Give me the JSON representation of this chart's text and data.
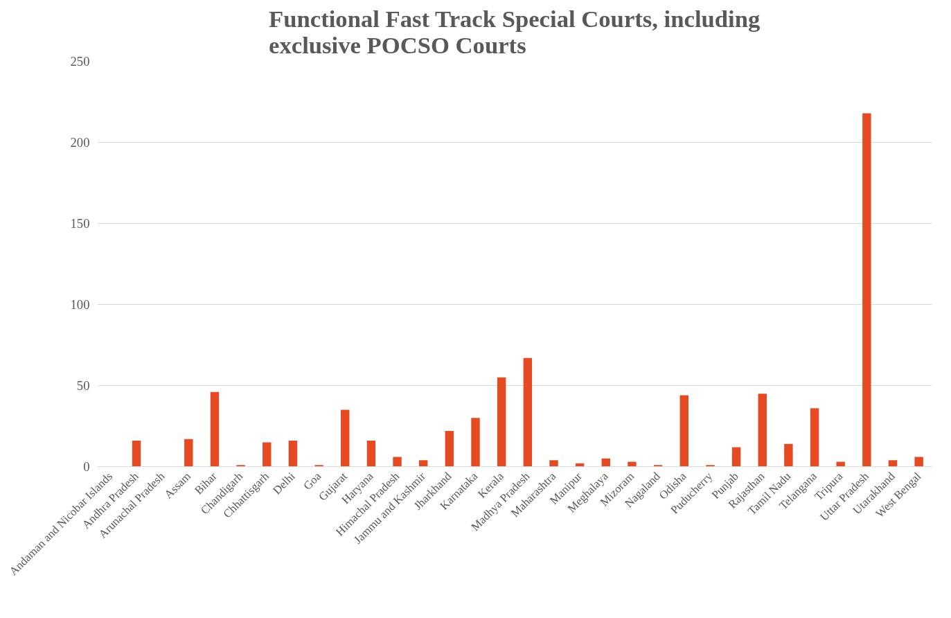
{
  "chart_data": {
    "type": "bar",
    "title": "Functional Fast Track Special Courts, including exclusive POCSO Courts",
    "categories": [
      "Andaman and Nicobar Islands",
      "Andhra Pradesh",
      "Arunachal Pradesh",
      "Assam",
      "Bihar",
      "Chandigarh",
      "Chhattisgarh",
      "Delhi",
      "Goa",
      "Gujarat",
      "Haryana",
      "Himachal Pradesh",
      "Jammu and Kashmir",
      "Jharkhand",
      "Karnataka",
      "Kerala",
      "Madhya Pradesh",
      "Maharashtra",
      "Manipur",
      "Meghalaya",
      "Mizoram",
      "Nagaland",
      "Odisha",
      "Puducherry",
      "Punjab",
      "Rajasthan",
      "Tamil Nadu",
      "Telangana",
      "Tripura",
      "Uttar Pradesh",
      "Utarakhand",
      "West Bengal"
    ],
    "values": [
      0,
      16,
      0,
      17,
      46,
      1,
      15,
      16,
      1,
      35,
      16,
      6,
      4,
      22,
      30,
      55,
      67,
      4,
      2,
      5,
      3,
      1,
      44,
      1,
      12,
      45,
      14,
      36,
      3,
      218,
      4,
      6
    ],
    "color": "#e64a22",
    "ylim": [
      0,
      250
    ],
    "yticks": [
      0,
      50,
      100,
      150,
      200,
      250
    ],
    "grid": "y"
  }
}
